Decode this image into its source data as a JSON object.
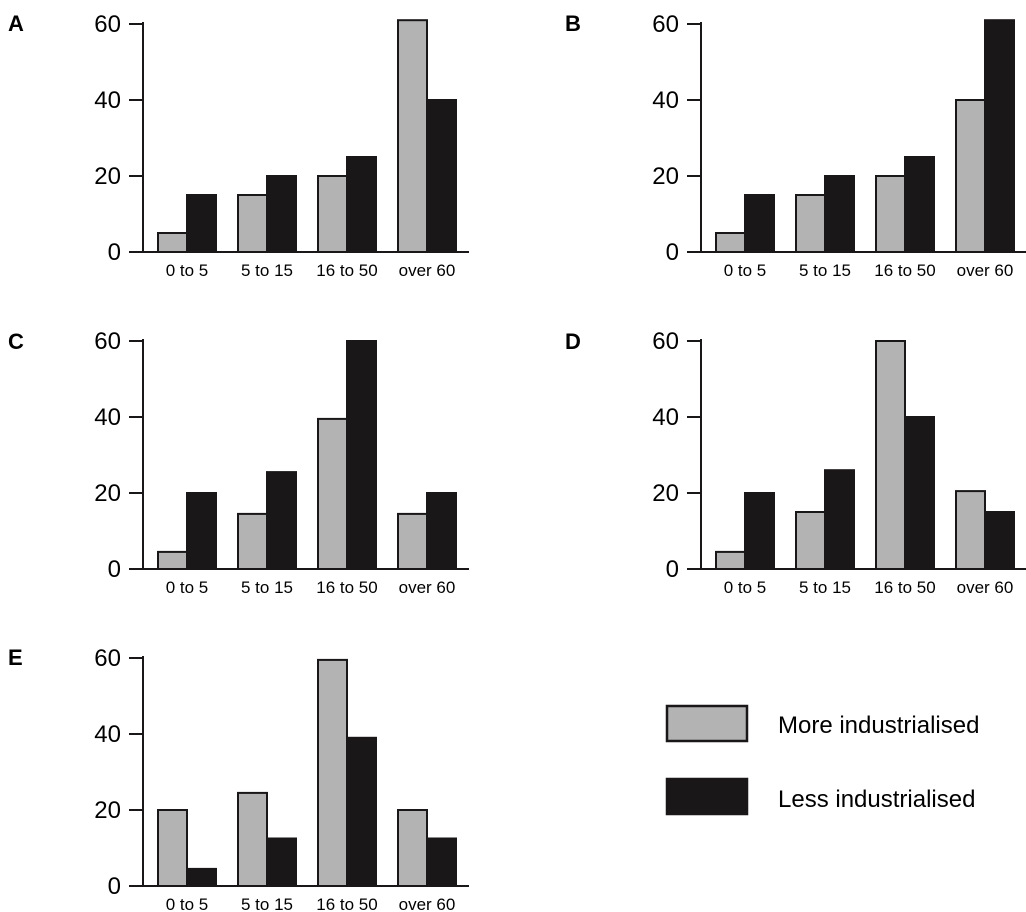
{
  "chart_data": [
    {
      "type": "bar",
      "panel": "A",
      "categories": [
        "0 to 5",
        "5 to 15",
        "16 to 50",
        "over 60"
      ],
      "series": [
        {
          "name": "More industrialised",
          "values": [
            5,
            15,
            20,
            61
          ]
        },
        {
          "name": "Less industrialised",
          "values": [
            15,
            20,
            25,
            40
          ]
        }
      ],
      "yticks": [
        0,
        20,
        40,
        60
      ],
      "ylim": [
        0,
        60
      ],
      "title": "",
      "xlabel": "",
      "ylabel": ""
    },
    {
      "type": "bar",
      "panel": "B",
      "categories": [
        "0 to 5",
        "5 to 15",
        "16 to 50",
        "over 60"
      ],
      "series": [
        {
          "name": "More industrialised",
          "values": [
            5,
            15,
            20,
            40
          ]
        },
        {
          "name": "Less industrialised",
          "values": [
            15,
            20,
            25,
            61
          ]
        }
      ],
      "yticks": [
        0,
        20,
        40,
        60
      ],
      "ylim": [
        0,
        60
      ],
      "title": "",
      "xlabel": "",
      "ylabel": ""
    },
    {
      "type": "bar",
      "panel": "C",
      "categories": [
        "0 to 5",
        "5 to 15",
        "16 to 50",
        "over 60"
      ],
      "series": [
        {
          "name": "More industrialised",
          "values": [
            4.5,
            14.5,
            39.5,
            14.5
          ]
        },
        {
          "name": "Less industrialised",
          "values": [
            20,
            25.5,
            60,
            20
          ]
        }
      ],
      "yticks": [
        0,
        20,
        40,
        60
      ],
      "ylim": [
        0,
        60
      ],
      "title": "",
      "xlabel": "",
      "ylabel": ""
    },
    {
      "type": "bar",
      "panel": "D",
      "categories": [
        "0 to 5",
        "5 to 15",
        "16 to 50",
        "over 60"
      ],
      "series": [
        {
          "name": "More industrialised",
          "values": [
            4.5,
            15,
            60,
            20.5
          ]
        },
        {
          "name": "Less industrialised",
          "values": [
            20,
            26,
            40,
            15
          ]
        }
      ],
      "yticks": [
        0,
        20,
        40,
        60
      ],
      "ylim": [
        0,
        60
      ],
      "title": "",
      "xlabel": "",
      "ylabel": ""
    },
    {
      "type": "bar",
      "panel": "E",
      "categories": [
        "0 to 5",
        "5 to 15",
        "16 to 50",
        "over 60"
      ],
      "series": [
        {
          "name": "More industrialised",
          "values": [
            20,
            24.5,
            59.5,
            20
          ]
        },
        {
          "name": "Less industrialised",
          "values": [
            4.5,
            12.5,
            39,
            12.5
          ]
        }
      ],
      "yticks": [
        0,
        20,
        40,
        60
      ],
      "ylim": [
        0,
        60
      ],
      "title": "",
      "xlabel": "",
      "ylabel": ""
    }
  ],
  "legend": {
    "placement": "bottom-right",
    "items": [
      {
        "label": "More industrialised",
        "color": "#b3b3b3"
      },
      {
        "label": "Less industrialised",
        "color": "#1a1718"
      }
    ]
  },
  "colors": {
    "more_industrialised": "#b3b3b3",
    "less_industrialised": "#1a1718",
    "axis": "#1a1718"
  }
}
